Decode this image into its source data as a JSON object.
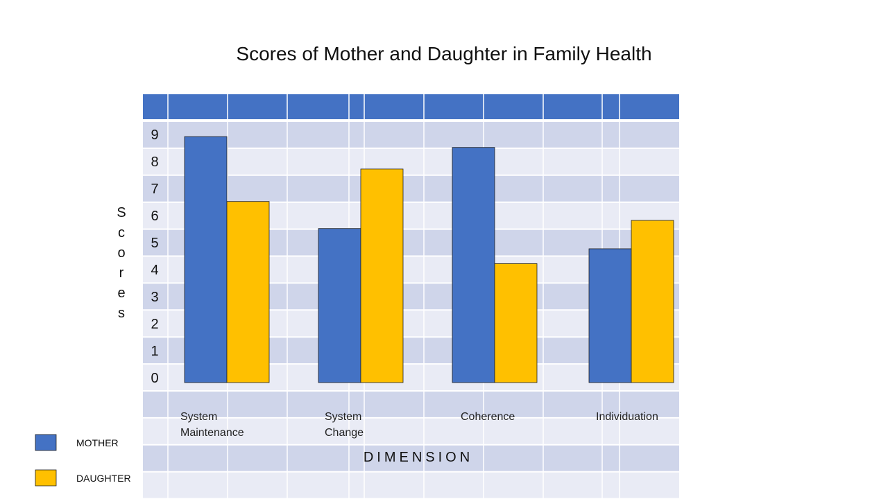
{
  "chart_data": {
    "type": "bar",
    "title": "Scores of Mother and Daughter in Family Health",
    "xlabel": "DIMENSION",
    "ylabel": "Scores",
    "categories": [
      [
        "System",
        "Maintenance"
      ],
      [
        "System",
        "Change"
      ],
      [
        "Coherence"
      ],
      [
        "Individuation"
      ]
    ],
    "series": [
      {
        "name": "MOTHER",
        "color": "#4472C4",
        "values": [
          9.1,
          5.7,
          8.7,
          4.95
        ]
      },
      {
        "name": "DAUGHTER",
        "color": "#FFC000",
        "values": [
          6.7,
          7.9,
          4.4,
          6.0
        ]
      }
    ],
    "yticks": [
      "0",
      "1",
      "2",
      "3",
      "4",
      "5",
      "6",
      "7",
      "8",
      "9"
    ],
    "ylim": [
      0,
      9.1
    ],
    "grid": true,
    "legend_position": "bottom-left",
    "colors": {
      "header_band": "#4472C4",
      "band_dark": "#CFD5EA",
      "band_light": "#E9EBF5"
    }
  }
}
